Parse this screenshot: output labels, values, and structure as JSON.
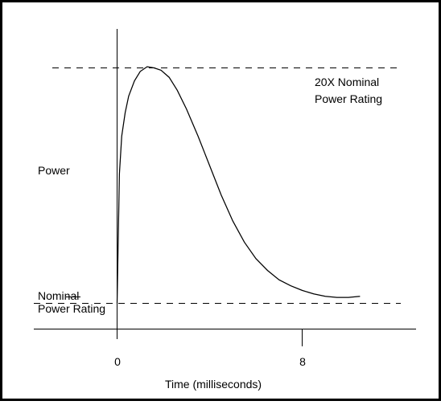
{
  "chart_data": {
    "type": "line",
    "title": "",
    "xlabel": "Time (milliseconds)",
    "ylabel": "Power",
    "x_ticks": [
      {
        "value": 0,
        "label": "0"
      },
      {
        "value": 8,
        "label": "8"
      }
    ],
    "xlim": [
      -2.8,
      11.5
    ],
    "ylim": [
      -0.3,
      20.9
    ],
    "grid": false,
    "series": [
      {
        "x": [
          0.0,
          0.1,
          0.2,
          0.35,
          0.5,
          0.75,
          1.0,
          1.3,
          1.6,
          1.9,
          2.25,
          2.6,
          3.0,
          3.5,
          4.0,
          4.5,
          5.0,
          5.5,
          6.0,
          6.5,
          7.0,
          7.5,
          8.0,
          8.5,
          9.0,
          9.5,
          10.0,
          10.5
        ],
        "y": [
          0.0,
          11.0,
          14.2,
          16.2,
          17.6,
          18.9,
          19.7,
          20.1,
          20.0,
          19.8,
          19.2,
          18.1,
          16.5,
          14.2,
          11.7,
          9.2,
          7.0,
          5.2,
          3.8,
          2.8,
          2.0,
          1.5,
          1.1,
          0.8,
          0.6,
          0.5,
          0.5,
          0.6
        ]
      }
    ],
    "reference_lines": [
      {
        "y": 20.0,
        "label": "20X Nominal\nPower Rating",
        "style": "dashed"
      },
      {
        "y": 0.0,
        "label": "Nominal\nPower Rating",
        "style": "dashed"
      }
    ],
    "colors": {
      "line": "#000000",
      "border": "#000000",
      "background": "#ffffff"
    }
  }
}
